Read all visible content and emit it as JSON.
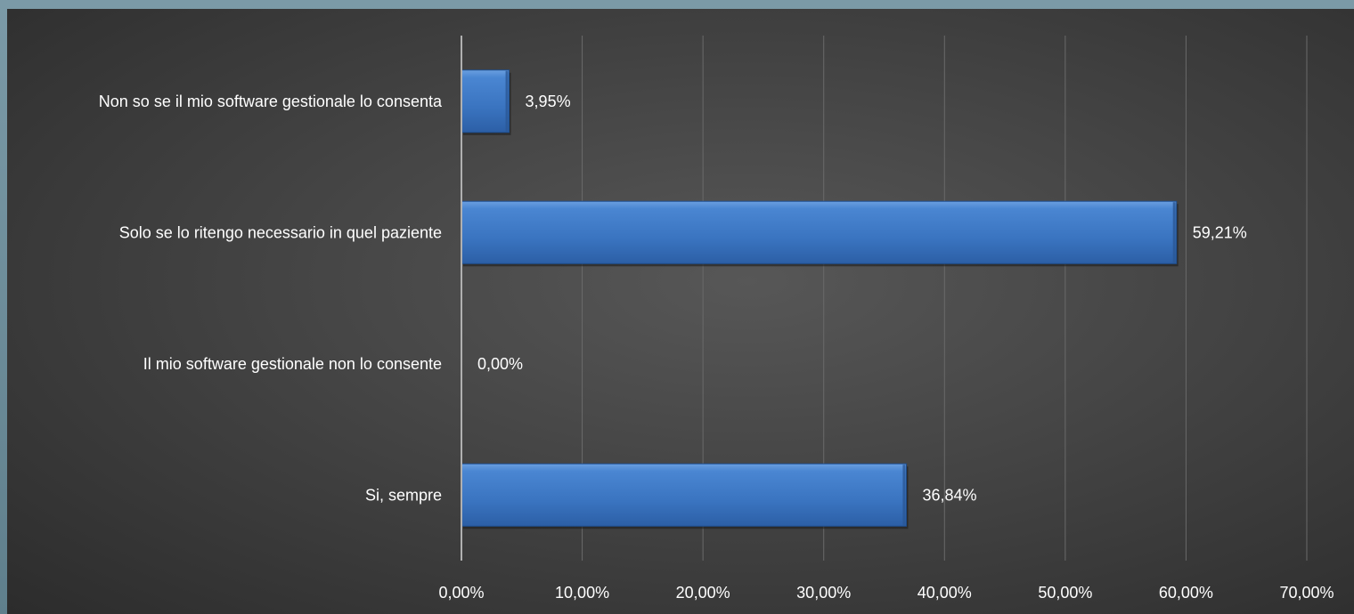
{
  "colors": {
    "bar": "#3d77c4",
    "bar_dark": "#1f4f8f",
    "grid": "#6a6a6a",
    "axis": "#b0b0b0",
    "text": "#ffffff"
  },
  "chart_data": {
    "type": "bar",
    "orientation": "horizontal",
    "categories": [
      "Si, sempre",
      "Il mio software gestionale non lo consente",
      "Solo se lo ritengo necessario in quel paziente",
      "Non so se il mio software gestionale lo consenta"
    ],
    "values": [
      36.84,
      0.0,
      59.21,
      3.95
    ],
    "data_labels": [
      "36,84%",
      "0,00%",
      "59,21%",
      "3,95%"
    ],
    "xlim": [
      0,
      70
    ],
    "xticks": [
      0,
      10,
      20,
      30,
      40,
      50,
      60,
      70
    ],
    "xtick_labels": [
      "0,00%",
      "10,00%",
      "20,00%",
      "30,00%",
      "40,00%",
      "50,00%",
      "60,00%",
      "70,00%"
    ],
    "grid": true,
    "legend": "none",
    "title": "",
    "xlabel": "",
    "ylabel": ""
  }
}
